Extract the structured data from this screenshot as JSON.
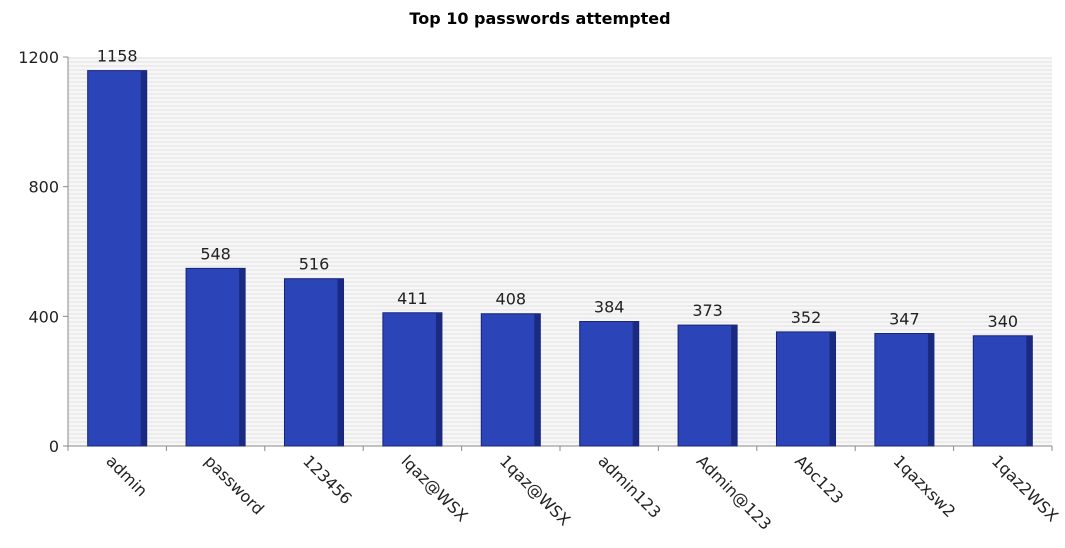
{
  "chart_data": {
    "type": "bar",
    "title": "Top 10 passwords attempted",
    "xlabel": "",
    "ylabel": "",
    "categories": [
      "admin",
      "password",
      "123456",
      "lqaz@WSX",
      "1qaz@WSX",
      "admin123",
      "Admin@123",
      "Abc123",
      "1qazxsw2",
      "1qaz2WSX"
    ],
    "values": [
      1158,
      548,
      516,
      411,
      408,
      384,
      373,
      352,
      347,
      340
    ],
    "ylim": [
      0,
      1200
    ],
    "yticks": [
      0,
      400,
      800,
      1200
    ],
    "grid": true,
    "legend": "none",
    "colors": {
      "bar_front": "#2b44b8",
      "bar_side": "#1a2a80",
      "bar_edge": "#16237a",
      "grid": "#e2e2e2",
      "axis": "#888888"
    }
  }
}
